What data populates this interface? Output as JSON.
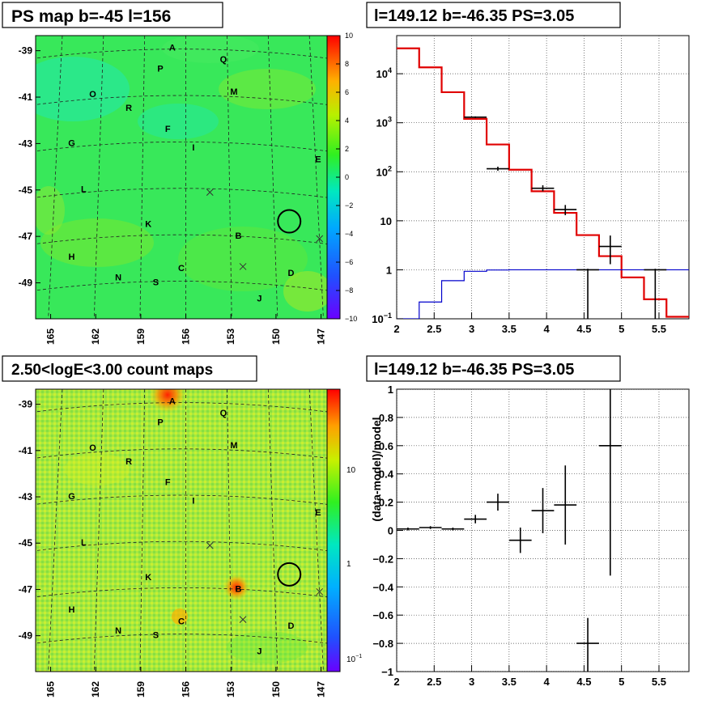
{
  "chart_data": [
    {
      "type": "heatmap",
      "title": "PS map b=-45 l=156",
      "x_ticks": [
        "165",
        "162",
        "159",
        "156",
        "153",
        "150",
        "147"
      ],
      "y_ticks": [
        "-39",
        "-41",
        "-43",
        "-45",
        "-47",
        "-49"
      ],
      "colorbar": {
        "ticks": [
          "10",
          "8",
          "6",
          "4",
          "2",
          "0",
          "−2",
          "−4",
          "−6",
          "−8",
          "−10"
        ],
        "range": [
          -10,
          10
        ]
      },
      "map_values_summary": "mostly between -1 and 2",
      "markers": [
        {
          "label": "A",
          "l": 156.9,
          "b": -39.0
        },
        {
          "label": "Q",
          "l": 153.5,
          "b": -39.5
        },
        {
          "label": "P",
          "l": 157.7,
          "b": -39.9
        },
        {
          "label": "O",
          "l": 162.2,
          "b": -41.0
        },
        {
          "label": "M",
          "l": 152.8,
          "b": -40.9
        },
        {
          "label": "R",
          "l": 159.8,
          "b": -41.6
        },
        {
          "label": "F",
          "l": 157.2,
          "b": -42.5
        },
        {
          "label": "I",
          "l": 155.5,
          "b": -43.3
        },
        {
          "label": "G",
          "l": 163.6,
          "b": -43.1
        },
        {
          "label": "E",
          "l": 147.2,
          "b": -43.8
        },
        {
          "label": "L",
          "l": 162.8,
          "b": -45.1
        },
        {
          "label": "K",
          "l": 158.5,
          "b": -46.6
        },
        {
          "label": "B",
          "l": 152.5,
          "b": -47.1
        },
        {
          "label": "H",
          "l": 163.6,
          "b": -48.0
        },
        {
          "label": "C",
          "l": 156.3,
          "b": -48.5
        },
        {
          "label": "D",
          "l": 149.0,
          "b": -48.7
        },
        {
          "label": "N",
          "l": 160.5,
          "b": -48.9
        },
        {
          "label": "S",
          "l": 158.0,
          "b": -49.1
        },
        {
          "label": "J",
          "l": 151.1,
          "b": -49.8
        }
      ],
      "crosses": [
        {
          "l": 154.4,
          "b": -45.1
        },
        {
          "l": 152.2,
          "b": -48.3
        },
        {
          "l": 147.1,
          "b": -47.1
        }
      ],
      "circle": {
        "l": 149.12,
        "b": -46.35
      }
    },
    {
      "type": "line",
      "title": "l=149.12 b=-46.35 PS=3.05",
      "x_ticks": [
        "2",
        "2.5",
        "3",
        "3.5",
        "4",
        "4.5",
        "5",
        "5.5"
      ],
      "y_ticks": [
        "10",
        "1"
      ],
      "y_tick_labels_sup": [
        {
          "base": "10",
          "exp": "4"
        },
        {
          "base": "10",
          "exp": "3"
        },
        {
          "base": "10",
          "exp": "2"
        },
        {
          "base": "10",
          "exp": "−1"
        }
      ],
      "xlim": [
        2,
        5.9
      ],
      "ylim": [
        0.1,
        60000
      ],
      "ylog": true,
      "grid": true,
      "bin_edges": [
        2.0,
        2.3,
        2.6,
        2.9,
        3.2,
        3.5,
        3.8,
        4.1,
        4.4,
        4.7,
        5.0,
        5.3,
        5.6,
        5.9
      ],
      "series": [
        {
          "color": "#e00000",
          "type": "step",
          "values": [
            33000,
            13500,
            4200,
            1200,
            360,
            110,
            40,
            14.5,
            5.1,
            1.9,
            0.7,
            0.25,
            0.11
          ]
        },
        {
          "color": "#0000cc",
          "type": "step",
          "values": [
            0.1,
            0.22,
            0.6,
            0.93,
            0.99,
            1.0,
            1.0,
            1.0,
            1.0,
            1.0,
            1.0,
            1.0,
            1.0
          ]
        },
        {
          "color": "#000000",
          "type": "errorbar",
          "points": [
            {
              "x": 3.05,
              "y": 1300,
              "xerr": 0.15,
              "ylo": 1250,
              "yhi": 1350
            },
            {
              "x": 3.35,
              "y": 115,
              "xerr": 0.15,
              "ylo": 105,
              "yhi": 127
            },
            {
              "x": 3.95,
              "y": 46,
              "xerr": 0.15,
              "ylo": 40,
              "yhi": 53
            },
            {
              "x": 4.25,
              "y": 17,
              "xerr": 0.15,
              "ylo": 13,
              "yhi": 21
            },
            {
              "x": 4.55,
              "y": 1,
              "xerr": 0.15,
              "ylo": 0.1,
              "yhi": 1.05
            },
            {
              "x": 4.85,
              "y": 3,
              "xerr": 0.15,
              "ylo": 1.3,
              "yhi": 5
            },
            {
              "x": 5.45,
              "y": 1,
              "xerr": 0.15,
              "ylo": 0.1,
              "yhi": 1.05
            }
          ]
        }
      ]
    },
    {
      "type": "heatmap",
      "title": "2.50<logE<3.00 count maps",
      "x_ticks": [
        "165",
        "162",
        "159",
        "156",
        "153",
        "150",
        "147"
      ],
      "y_ticks": [
        "-39",
        "-41",
        "-43",
        "-45",
        "-47",
        "-49"
      ],
      "colorbar": {
        "ticks": [
          "10",
          "1"
        ],
        "sup_ticks": [
          {
            "base": "10",
            "exp": "−1"
          }
        ],
        "log": true
      }
    },
    {
      "type": "scatter",
      "title": "l=149.12 b=-46.35 PS=3.05",
      "ylabel": "(data-model)/model",
      "x_ticks": [
        "2",
        "2.5",
        "3",
        "3.5",
        "4",
        "4.5",
        "5",
        "5.5"
      ],
      "y_ticks": [
        "1",
        "0.8",
        "0.6",
        "0.4",
        "0.2",
        "0",
        "−0.2",
        "−0.4",
        "−0.6",
        "−0.8",
        "−1"
      ],
      "xlim": [
        2,
        5.9
      ],
      "ylim": [
        -1,
        1
      ],
      "grid": true,
      "points": [
        {
          "x": 2.15,
          "y": 0.01,
          "xerr": 0.15,
          "ylo": 0.0,
          "yhi": 0.02
        },
        {
          "x": 2.45,
          "y": 0.02,
          "xerr": 0.15,
          "ylo": 0.01,
          "yhi": 0.03
        },
        {
          "x": 2.75,
          "y": 0.01,
          "xerr": 0.15,
          "ylo": 0.0,
          "yhi": 0.02
        },
        {
          "x": 3.05,
          "y": 0.08,
          "xerr": 0.15,
          "ylo": 0.05,
          "yhi": 0.11
        },
        {
          "x": 3.35,
          "y": 0.2,
          "xerr": 0.15,
          "ylo": 0.14,
          "yhi": 0.26
        },
        {
          "x": 3.65,
          "y": -0.07,
          "xerr": 0.15,
          "ylo": -0.16,
          "yhi": 0.02
        },
        {
          "x": 3.95,
          "y": 0.14,
          "xerr": 0.15,
          "ylo": -0.02,
          "yhi": 0.3
        },
        {
          "x": 4.25,
          "y": 0.18,
          "xerr": 0.15,
          "ylo": -0.1,
          "yhi": 0.46
        },
        {
          "x": 4.55,
          "y": -0.8,
          "xerr": 0.15,
          "ylo": -1.0,
          "yhi": -0.62
        },
        {
          "x": 4.85,
          "y": 0.6,
          "xerr": 0.15,
          "ylo": -0.32,
          "yhi": 1.0
        }
      ]
    }
  ]
}
